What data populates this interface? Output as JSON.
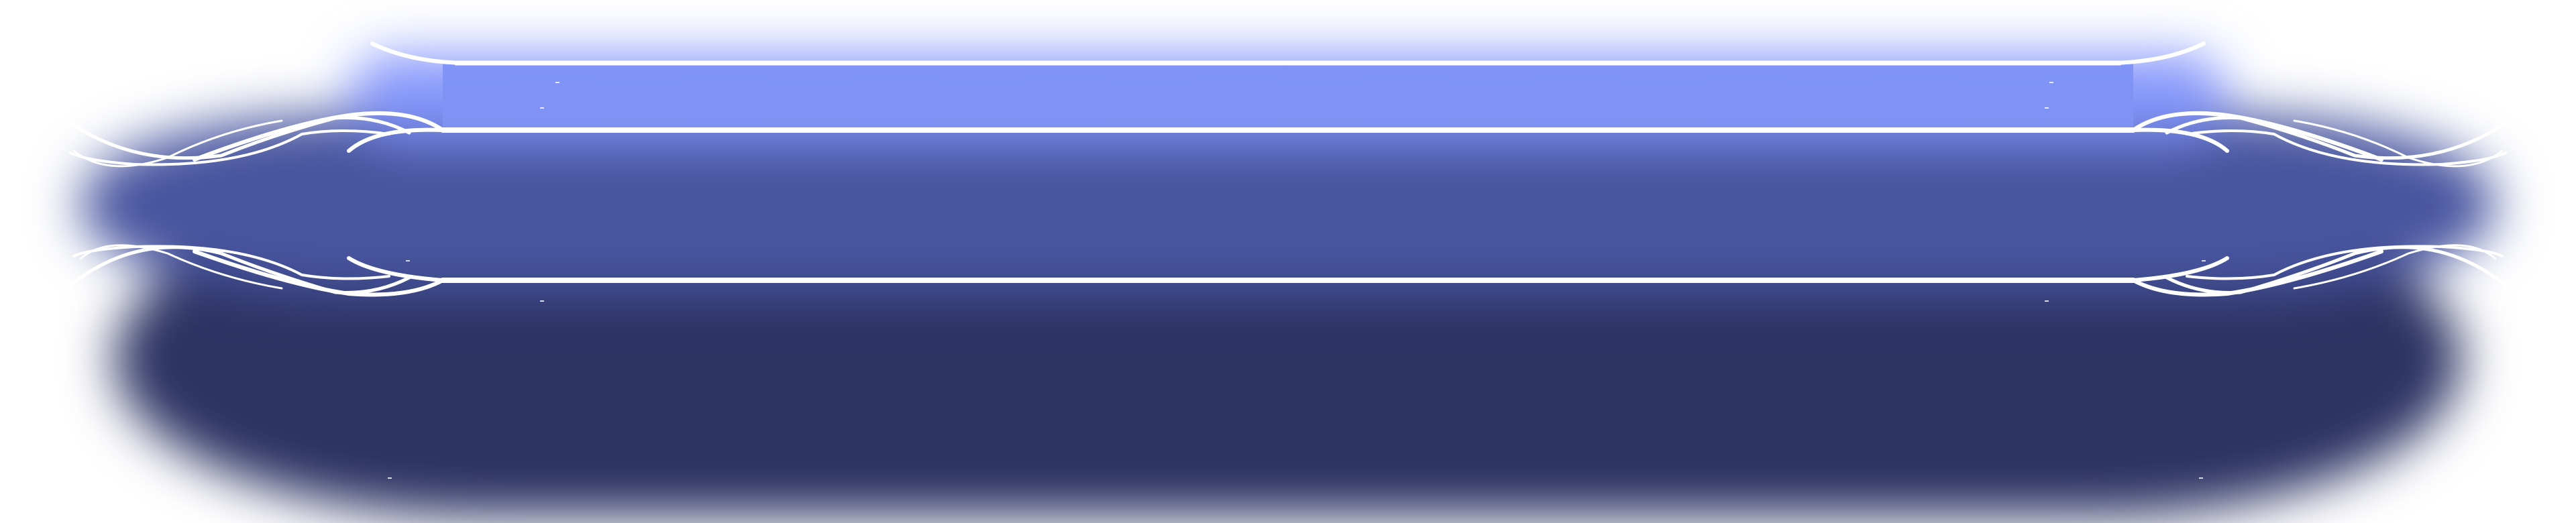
{
  "theme": {
    "band_top": "#8194f7",
    "band_mid": "#47559f",
    "band_dark": "#2c3262",
    "trim": "#ffffff"
  },
  "ornaments": {
    "left": "scroll-flourish-icon",
    "right": "scroll-flourish-icon"
  }
}
